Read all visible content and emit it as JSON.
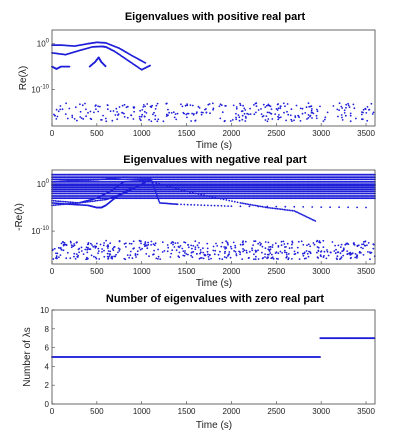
{
  "chart_data": [
    {
      "type": "scatter",
      "title": "Eigenvalues with positive real part",
      "xlabel": "Time (s)",
      "ylabel": "Re(λ)",
      "yscale": "log",
      "xlim": [
        0,
        3600
      ],
      "ylim": [
        1e-18,
        1000.0
      ],
      "xticks": [
        0,
        500,
        1000,
        1500,
        2000,
        2500,
        3000,
        3500
      ],
      "yticks": [
        {
          "value": 1,
          "label": "10^0"
        },
        {
          "value": 1e-10,
          "label": "10^-10"
        }
      ],
      "grid": false,
      "color": "#1f1fd9",
      "series": [
        {
          "kind": "curve",
          "x": [
            0,
            150,
            300,
            450,
            550,
            600,
            700,
            850,
            1000,
            1100
          ],
          "y": [
            0.01,
            0.004,
            0.03,
            0.2,
            0.25,
            0.2,
            0.02,
            0.0002,
            2e-06,
            2e-05
          ]
        },
        {
          "kind": "curve",
          "x": [
            0,
            100,
            250,
            400,
            500,
            600,
            750,
            900,
            1050
          ],
          "y": [
            0.5,
            0.5,
            0.3,
            1,
            2,
            1.5,
            0.1,
            0.002,
            5e-05
          ]
        },
        {
          "kind": "curve",
          "x": [
            0,
            50,
            100,
            200
          ],
          "y": [
            1e-05,
            3e-06,
            1e-05,
            1e-05
          ]
        },
        {
          "kind": "curve",
          "x": [
            420,
            480,
            520,
            550,
            600
          ],
          "y": [
            1e-05,
            0.0001,
            0.001,
            0.0001,
            1e-05
          ]
        },
        {
          "kind": "noise-band",
          "x_range": [
            0,
            3600
          ],
          "y_range": [
            1e-17,
            1e-13
          ],
          "density": 320
        }
      ]
    },
    {
      "type": "scatter",
      "title": "Eigenvalues with negative real part",
      "xlabel": "Time (s)",
      "ylabel": "-Re(λ)",
      "yscale": "log",
      "xlim": [
        0,
        3600
      ],
      "ylim": [
        1e-17,
        1000.0
      ],
      "xticks": [
        0,
        500,
        1000,
        1500,
        2000,
        2500,
        3000,
        3500
      ],
      "yticks": [
        {
          "value": 1,
          "label": "10^0"
        },
        {
          "value": 1e-10,
          "label": "10^-10"
        }
      ],
      "grid": false,
      "color": "#1f1fd9",
      "series": [
        {
          "kind": "flat-lines",
          "x_range": [
            0,
            3600
          ],
          "y": [
            100,
            30,
            10,
            3,
            1,
            0.5,
            0.2,
            0.08,
            0.03,
            0.01,
            0.003,
            0.001
          ]
        },
        {
          "kind": "curve",
          "x": [
            0,
            300,
            500,
            650,
            800,
            1000,
            1100,
            1600,
            2100,
            2400,
            2700,
            2950
          ],
          "y": [
            3e-05,
            0.0001,
            0.001,
            0.03,
            3,
            5,
            4,
            0.01,
            0.0001,
            1e-05,
            2e-06,
            1e-08
          ]
        },
        {
          "kind": "curve",
          "x": [
            0,
            200,
            500,
            800,
            1100,
            1200,
            1400,
            2000,
            3600
          ],
          "y": [
            3,
            5,
            8,
            30,
            20,
            0.0001,
            5e-05,
            2e-05,
            1e-05
          ]
        },
        {
          "kind": "curve",
          "x": [
            0,
            200,
            400,
            500,
            550,
            600,
            700,
            900
          ],
          "y": [
            0.0001,
            5e-05,
            3e-05,
            1e-05,
            1e-05,
            3e-05,
            0.001,
            0.3
          ]
        },
        {
          "kind": "curve",
          "x": [
            0,
            300,
            600,
            800,
            1000,
            1100
          ],
          "y": [
            0.0003,
            0.0001,
            0.0005,
            0.01,
            1,
            10
          ]
        },
        {
          "kind": "noise-band",
          "x_range": [
            0,
            3600
          ],
          "y_range": [
            1e-16,
            1e-12
          ],
          "density": 520
        }
      ]
    },
    {
      "type": "scatter",
      "title": "Number of eigenvalues with zero real part",
      "xlabel": "Time (s)",
      "ylabel": "Number of λs",
      "xlim": [
        0,
        3600
      ],
      "ylim": [
        0,
        10
      ],
      "xticks": [
        0,
        500,
        1000,
        1500,
        2000,
        2500,
        3000,
        3500
      ],
      "yticks": [
        0,
        2,
        4,
        6,
        8,
        10
      ],
      "grid": false,
      "color": "#1f1fd9",
      "series": [
        {
          "kind": "step",
          "x": [
            0,
            2990
          ],
          "y": 5
        },
        {
          "kind": "step",
          "x": [
            2990,
            3600
          ],
          "y": 7
        }
      ]
    }
  ]
}
